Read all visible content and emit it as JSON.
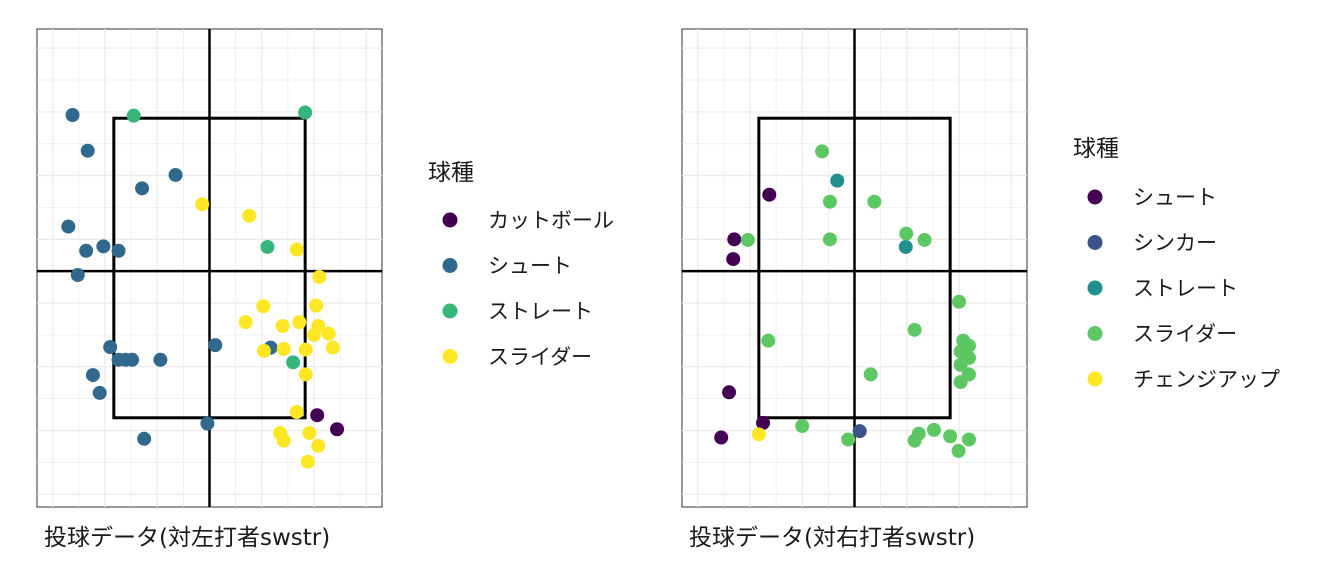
{
  "chart_data": [
    {
      "type": "scatter",
      "title": "投球データ(対左打者swstr)",
      "xlim": [
        -3.3,
        3.3
      ],
      "ylim": [
        -1.2,
        6.3
      ],
      "grid": true,
      "legend_position": "right",
      "legend": {
        "title": "球種",
        "entries": [
          {
            "name": "カットボール",
            "color": "#440154"
          },
          {
            "name": "シュート",
            "color": "#31688E"
          },
          {
            "name": "ストレート",
            "color": "#35B779"
          },
          {
            "name": "スライダー",
            "color": "#FDE725"
          }
        ]
      },
      "strike_zone": {
        "x": [
          -1.83,
          1.83
        ],
        "y": [
          0.2,
          4.9
        ]
      },
      "series": [
        {
          "name": "カットボール",
          "color": "#440154",
          "points": [
            [
              2.06,
              0.24
            ],
            [
              2.44,
              0.02
            ]
          ]
        },
        {
          "name": "シュート",
          "color": "#31688E",
          "points": [
            [
              -2.62,
              4.95
            ],
            [
              -2.33,
              4.39
            ],
            [
              -1.29,
              3.8
            ],
            [
              -0.65,
              4.01
            ],
            [
              -2.7,
              3.2
            ],
            [
              -2.36,
              2.82
            ],
            [
              -2.03,
              2.89
            ],
            [
              -1.74,
              2.82
            ],
            [
              -2.52,
              2.44
            ],
            [
              -1.9,
              1.31
            ],
            [
              -1.74,
              1.11
            ],
            [
              -1.6,
              1.11
            ],
            [
              -1.48,
              1.11
            ],
            [
              -0.94,
              1.11
            ],
            [
              0.11,
              1.34
            ],
            [
              1.17,
              1.3
            ],
            [
              -2.23,
              0.87
            ],
            [
              -2.1,
              0.59
            ],
            [
              -0.04,
              0.11
            ],
            [
              -1.25,
              -0.13
            ]
          ]
        },
        {
          "name": "ストレート",
          "color": "#35B779",
          "points": [
            [
              -1.45,
              4.94
            ],
            [
              1.83,
              4.99
            ],
            [
              1.11,
              2.88
            ],
            [
              1.6,
              1.07
            ]
          ]
        },
        {
          "name": "スライダー",
          "color": "#FDE725",
          "points": [
            [
              -0.14,
              3.55
            ],
            [
              0.76,
              3.37
            ],
            [
              1.67,
              2.84
            ],
            [
              2.1,
              2.41
            ],
            [
              2.04,
              1.96
            ],
            [
              1.03,
              1.95
            ],
            [
              2.0,
              1.5
            ],
            [
              2.36,
              1.3
            ],
            [
              1.72,
              1.7
            ],
            [
              1.4,
              1.64
            ],
            [
              0.69,
              1.7
            ],
            [
              2.08,
              1.64
            ],
            [
              2.28,
              1.52
            ],
            [
              1.42,
              1.28
            ],
            [
              1.04,
              1.25
            ],
            [
              1.84,
              1.27
            ],
            [
              1.84,
              0.88
            ],
            [
              1.67,
              0.29
            ],
            [
              1.35,
              -0.04
            ],
            [
              1.91,
              -0.04
            ],
            [
              2.08,
              -0.24
            ],
            [
              1.42,
              -0.16
            ],
            [
              1.88,
              -0.49
            ]
          ]
        }
      ]
    },
    {
      "type": "scatter",
      "title": "投球データ(対右打者swstr)",
      "xlim": [
        -3.3,
        3.3
      ],
      "ylim": [
        -1.2,
        6.3
      ],
      "grid": true,
      "legend_position": "right",
      "legend": {
        "title": "球種",
        "entries": [
          {
            "name": "シュート",
            "color": "#440154"
          },
          {
            "name": "シンカー",
            "color": "#3B528B"
          },
          {
            "name": "ストレート",
            "color": "#21908C"
          },
          {
            "name": "スライダー",
            "color": "#5DC863"
          },
          {
            "name": "チェンジアップ",
            "color": "#FDE725"
          }
        ]
      },
      "strike_zone": {
        "x": [
          -1.83,
          1.83
        ],
        "y": [
          0.2,
          4.9
        ]
      },
      "series": [
        {
          "name": "シュート",
          "color": "#440154",
          "points": [
            [
              -1.63,
              3.7
            ],
            [
              -2.3,
              3.0
            ],
            [
              -2.32,
              2.69
            ],
            [
              -2.4,
              0.6
            ],
            [
              -1.75,
              0.12
            ],
            [
              -2.55,
              -0.11
            ]
          ]
        },
        {
          "name": "シンカー",
          "color": "#3B528B",
          "points": [
            [
              0.1,
              -0.01
            ]
          ]
        },
        {
          "name": "ストレート",
          "color": "#21908C",
          "points": [
            [
              -0.33,
              3.92
            ],
            [
              0.98,
              2.88
            ]
          ]
        },
        {
          "name": "スライダー",
          "color": "#5DC863",
          "points": [
            [
              -0.62,
              4.38
            ],
            [
              -0.47,
              3.59
            ],
            [
              0.38,
              3.59
            ],
            [
              -0.47,
              3.0
            ],
            [
              1.34,
              2.99
            ],
            [
              0.99,
              3.09
            ],
            [
              -2.04,
              2.99
            ],
            [
              2.0,
              2.02
            ],
            [
              1.15,
              1.58
            ],
            [
              -1.65,
              1.41
            ],
            [
              2.08,
              1.41
            ],
            [
              2.19,
              1.33
            ],
            [
              2.03,
              1.24
            ],
            [
              2.19,
              1.14
            ],
            [
              2.03,
              1.03
            ],
            [
              2.19,
              0.88
            ],
            [
              2.03,
              0.76
            ],
            [
              0.31,
              0.88
            ],
            [
              -1.0,
              0.07
            ],
            [
              1.23,
              -0.05
            ],
            [
              1.52,
              0.01
            ],
            [
              1.83,
              -0.09
            ],
            [
              1.15,
              -0.16
            ],
            [
              1.99,
              -0.32
            ],
            [
              2.19,
              -0.14
            ],
            [
              -0.12,
              -0.14
            ]
          ]
        },
        {
          "name": "チェンジアップ",
          "color": "#FDE725",
          "points": [
            [
              -1.83,
              -0.06
            ]
          ]
        }
      ]
    }
  ]
}
